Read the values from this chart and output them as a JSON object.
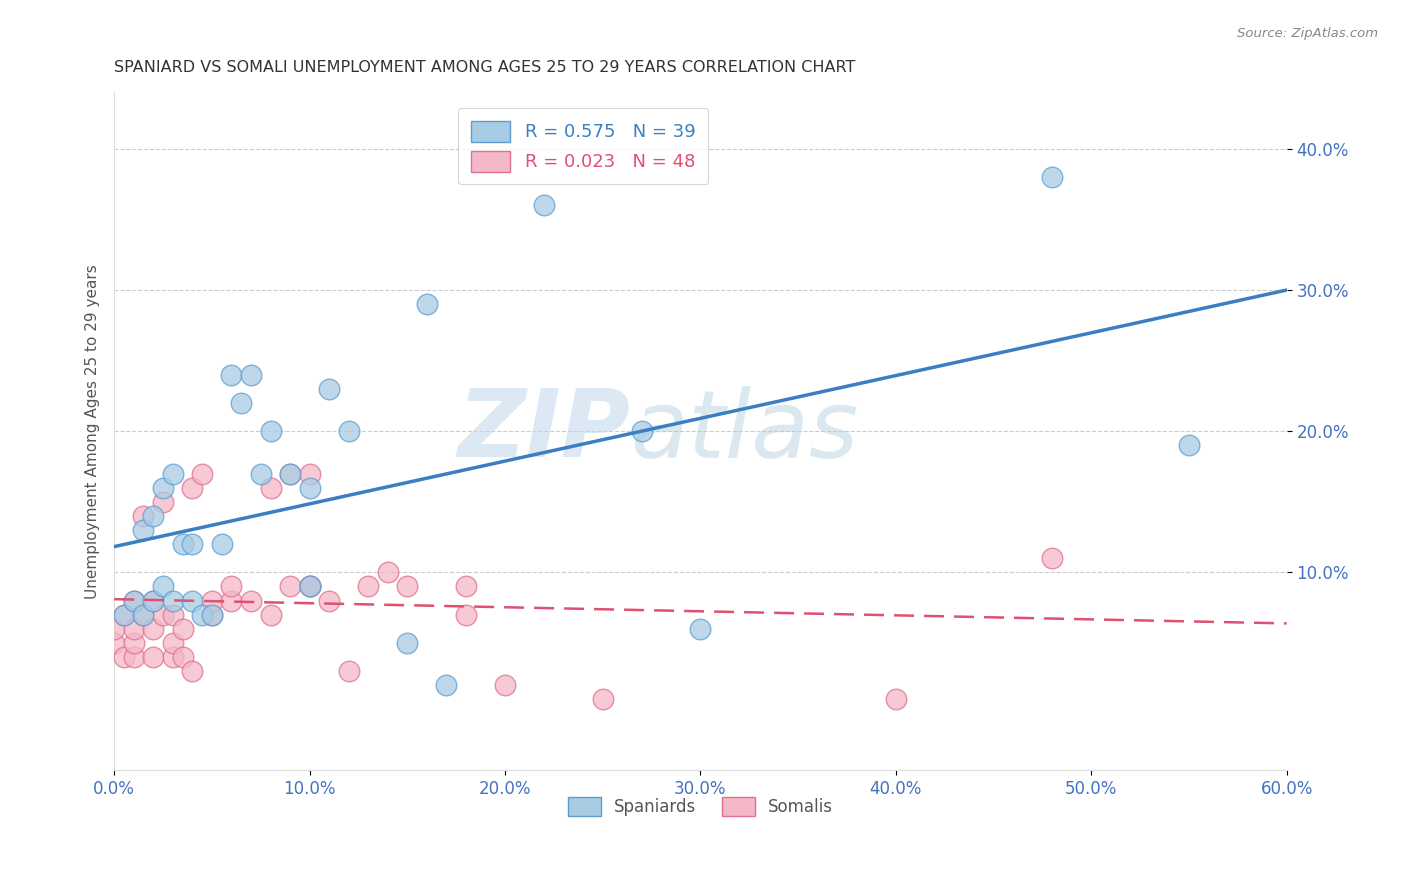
{
  "title": "SPANIARD VS SOMALI UNEMPLOYMENT AMONG AGES 25 TO 29 YEARS CORRELATION CHART",
  "source": "Source: ZipAtlas.com",
  "ylabel": "Unemployment Among Ages 25 to 29 years",
  "xlabel": "",
  "xlim": [
    0.0,
    0.6
  ],
  "ylim": [
    -0.04,
    0.44
  ],
  "xticks": [
    0.0,
    0.1,
    0.2,
    0.3,
    0.4,
    0.5,
    0.6
  ],
  "xticklabels": [
    "0.0%",
    "10.0%",
    "20.0%",
    "30.0%",
    "40.0%",
    "50.0%",
    "60.0%"
  ],
  "yticks": [
    0.1,
    0.2,
    0.3,
    0.4
  ],
  "yticklabels": [
    "10.0%",
    "20.0%",
    "30.0%",
    "40.0%"
  ],
  "spaniards_x": [
    0.005,
    0.01,
    0.015,
    0.015,
    0.02,
    0.02,
    0.025,
    0.025,
    0.03,
    0.03,
    0.035,
    0.04,
    0.04,
    0.045,
    0.05,
    0.055,
    0.06,
    0.065,
    0.07,
    0.075,
    0.08,
    0.09,
    0.1,
    0.1,
    0.11,
    0.12,
    0.15,
    0.16,
    0.17,
    0.22,
    0.27,
    0.3,
    0.48,
    0.55
  ],
  "spaniards_y": [
    0.07,
    0.08,
    0.07,
    0.13,
    0.14,
    0.08,
    0.09,
    0.16,
    0.17,
    0.08,
    0.12,
    0.12,
    0.08,
    0.07,
    0.07,
    0.12,
    0.24,
    0.22,
    0.24,
    0.17,
    0.2,
    0.17,
    0.09,
    0.16,
    0.23,
    0.2,
    0.05,
    0.29,
    0.02,
    0.36,
    0.2,
    0.06,
    0.38,
    0.19
  ],
  "somalis_x": [
    0.0,
    0.0,
    0.005,
    0.005,
    0.01,
    0.01,
    0.01,
    0.01,
    0.015,
    0.015,
    0.02,
    0.02,
    0.02,
    0.025,
    0.025,
    0.03,
    0.03,
    0.03,
    0.035,
    0.035,
    0.04,
    0.04,
    0.045,
    0.05,
    0.05,
    0.06,
    0.06,
    0.07,
    0.08,
    0.08,
    0.09,
    0.09,
    0.1,
    0.1,
    0.1,
    0.11,
    0.12,
    0.13,
    0.14,
    0.15,
    0.18,
    0.18,
    0.2,
    0.25,
    0.4,
    0.48
  ],
  "somalis_y": [
    0.05,
    0.06,
    0.04,
    0.07,
    0.04,
    0.05,
    0.06,
    0.08,
    0.07,
    0.14,
    0.04,
    0.06,
    0.08,
    0.07,
    0.15,
    0.04,
    0.05,
    0.07,
    0.04,
    0.06,
    0.03,
    0.16,
    0.17,
    0.07,
    0.08,
    0.08,
    0.09,
    0.08,
    0.07,
    0.16,
    0.09,
    0.17,
    0.09,
    0.09,
    0.17,
    0.08,
    0.03,
    0.09,
    0.1,
    0.09,
    0.07,
    0.09,
    0.02,
    0.01,
    0.01,
    0.11
  ],
  "spaniards_R": 0.575,
  "spaniards_N": 39,
  "somalis_R": 0.023,
  "somalis_N": 48,
  "blue_color": "#a8cce4",
  "pink_color": "#f4b8c8",
  "blue_line_color": "#3a7fc1",
  "pink_line_color": "#e05070",
  "blue_scatter_edge": "#5a9fd4",
  "pink_scatter_edge": "#e07090",
  "legend_label_spaniards": "Spaniards",
  "legend_label_somalis": "Somalis",
  "watermark_zip": "ZIP",
  "watermark_atlas": "atlas",
  "background_color": "#ffffff",
  "grid_color": "#cccccc",
  "tick_color": "#4472c4",
  "title_color": "#333333",
  "ylabel_color": "#555555"
}
